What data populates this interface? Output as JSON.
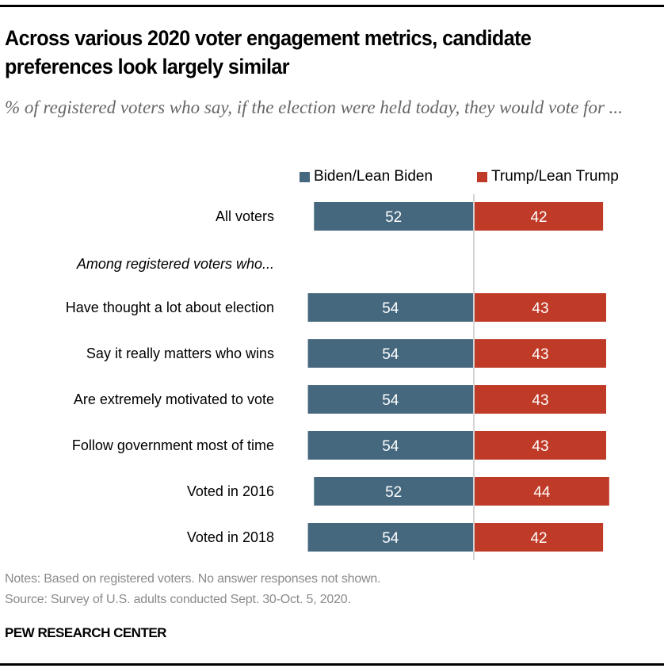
{
  "title": "Across various 2020 voter engagement metrics, candidate preferences look largely similar",
  "subtitle": "% of registered voters who say, if the election were held today, they would vote for ...",
  "legend": [
    {
      "label": "Biden/Lean Biden",
      "color": "#46687f"
    },
    {
      "label": "Trump/Lean Trump",
      "color": "#bf3a27"
    }
  ],
  "section_label": "Among registered voters who...",
  "chart_data": {
    "type": "bar",
    "orientation": "horizontal-diverging",
    "title": "Across various 2020 voter engagement metrics, candidate preferences look largely similar",
    "subtitle": "% of registered voters who say, if the election were held today, they would vote for ...",
    "categories": [
      "All voters",
      "Have thought a lot about election",
      "Say it really matters who wins",
      "Are extremely motivated to vote",
      "Follow government most of time",
      "Voted in 2016",
      "Voted in 2018"
    ],
    "series": [
      {
        "name": "Biden/Lean Biden",
        "color": "#46687f",
        "values": [
          52,
          54,
          54,
          54,
          54,
          52,
          54
        ]
      },
      {
        "name": "Trump/Lean Trump",
        "color": "#bf3a27",
        "values": [
          42,
          43,
          43,
          43,
          43,
          44,
          42
        ]
      }
    ],
    "xlabel": "",
    "ylabel": "",
    "legend_position": "top",
    "grid": false
  },
  "notes": "Notes: Based on registered voters. No answer responses not shown.",
  "source": "Source: Survey of U.S. adults conducted Sept. 30-Oct. 5, 2020.",
  "brand": "PEW RESEARCH CENTER"
}
